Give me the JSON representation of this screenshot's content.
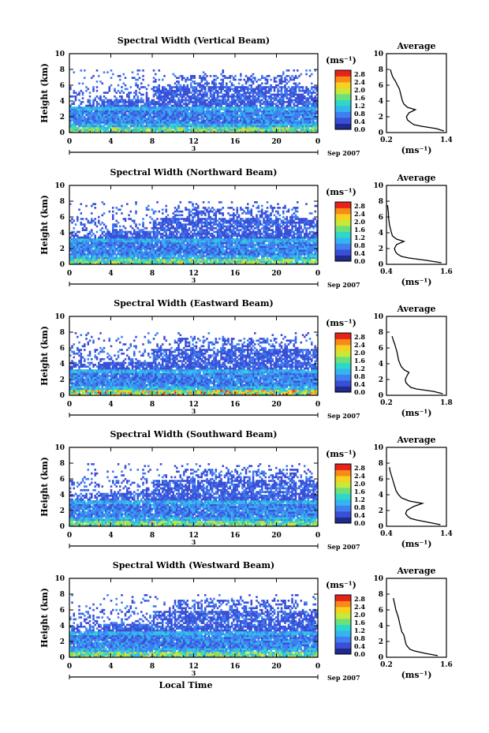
{
  "figure": {
    "date_label": "Sep 2007",
    "day_label": "3",
    "xlabel": "Local Time",
    "ylabel": "Height (km)",
    "colorbar_unit": "(ms⁻¹)",
    "colorbar_ticks": [
      "2.8",
      "2.4",
      "2.0",
      "1.6",
      "1.2",
      "0.8",
      "0.4",
      "0.0"
    ],
    "colors": [
      "#1e2a8c",
      "#3a4fd6",
      "#3f7ff0",
      "#35b4f0",
      "#2ed8c8",
      "#6ee07a",
      "#c8e83a",
      "#f8d020",
      "#f88a18",
      "#e8221a"
    ],
    "average_title": "Average",
    "average_unit": "(ms⁻¹)"
  },
  "chart_data": [
    {
      "type": "heatmap",
      "title": "Spectral Width (Vertical Beam)",
      "xlabel": "Local Time",
      "ylabel": "Height (km)",
      "xlim": [
        0,
        24
      ],
      "ylim": [
        0,
        10
      ],
      "x_ticks": [
        "0",
        "4",
        "8",
        "12",
        "16",
        "20",
        "0"
      ],
      "y_ticks": [
        "0",
        "2",
        "4",
        "6",
        "8",
        "10"
      ],
      "colorbar": {
        "label": "(ms⁻¹)",
        "ticks": [
          "2.8",
          "2.4",
          "2.0",
          "1.6",
          "1.2",
          "0.8",
          "0.4",
          "0.0"
        ],
        "range": [
          0,
          3.0
        ]
      },
      "average_profile": {
        "title": "Average",
        "xlabel": "(ms⁻¹)",
        "x_ticks": [
          "0.2",
          "1.4"
        ],
        "xlim": [
          0.2,
          1.4
        ],
        "y_ticks": [
          "0",
          "2",
          "4",
          "6",
          "8",
          "10"
        ],
        "height_km": [
          0.2,
          0.5,
          0.8,
          1.0,
          1.3,
          1.6,
          2.0,
          2.5,
          2.9,
          3.2,
          3.6,
          4.0,
          4.5,
          5.0,
          5.5,
          6.0,
          6.5,
          7.0,
          7.5,
          8.0
        ],
        "width_ms": [
          1.35,
          1.2,
          0.9,
          0.75,
          0.68,
          0.62,
          0.6,
          0.65,
          0.78,
          0.62,
          0.55,
          0.52,
          0.5,
          0.48,
          0.46,
          0.42,
          0.38,
          0.33,
          0.3,
          0.28
        ]
      }
    },
    {
      "type": "heatmap",
      "title": "Spectral Width (Northward Beam)",
      "xlabel": "Local Time",
      "ylabel": "Height (km)",
      "xlim": [
        0,
        24
      ],
      "ylim": [
        0,
        10
      ],
      "x_ticks": [
        "0",
        "4",
        "8",
        "12",
        "16",
        "20",
        "0"
      ],
      "y_ticks": [
        "0",
        "2",
        "4",
        "6",
        "8",
        "10"
      ],
      "colorbar": {
        "label": "(ms⁻¹)",
        "ticks": [
          "2.8",
          "2.4",
          "2.0",
          "1.6",
          "1.2",
          "0.8",
          "0.4",
          "0.0"
        ],
        "range": [
          0,
          3.0
        ]
      },
      "average_profile": {
        "title": "Average",
        "xlabel": "(ms⁻¹)",
        "x_ticks": [
          "0.4",
          "1.6"
        ],
        "xlim": [
          0.4,
          1.6
        ],
        "y_ticks": [
          "0",
          "2",
          "4",
          "6",
          "8",
          "10"
        ],
        "height_km": [
          0.2,
          0.5,
          0.8,
          1.0,
          1.3,
          1.6,
          2.0,
          2.5,
          2.9,
          3.2,
          3.6,
          4.0,
          4.5,
          5.0,
          5.5,
          6.0,
          6.5,
          7.0,
          7.5
        ],
        "width_ms": [
          1.5,
          1.2,
          0.85,
          0.7,
          0.62,
          0.58,
          0.56,
          0.6,
          0.75,
          0.6,
          0.52,
          0.5,
          0.48,
          0.46,
          0.45,
          0.44,
          0.44,
          0.43,
          0.42
        ]
      }
    },
    {
      "type": "heatmap",
      "title": "Spectral Width (Eastward Beam)",
      "xlabel": "Local Time",
      "ylabel": "Height (km)",
      "xlim": [
        0,
        24
      ],
      "ylim": [
        0,
        10
      ],
      "x_ticks": [
        "0",
        "4",
        "8",
        "12",
        "16",
        "20",
        "0"
      ],
      "y_ticks": [
        "0",
        "2",
        "4",
        "6",
        "8",
        "10"
      ],
      "colorbar": {
        "label": "(ms⁻¹)",
        "ticks": [
          "2.8",
          "2.4",
          "2.0",
          "1.6",
          "1.2",
          "0.8",
          "0.4",
          "0.0"
        ],
        "range": [
          0,
          3.0
        ]
      },
      "average_profile": {
        "title": "Average",
        "xlabel": "(ms⁻¹)",
        "x_ticks": [
          "0.2",
          "1.8"
        ],
        "xlim": [
          0.2,
          1.8
        ],
        "y_ticks": [
          "0",
          "2",
          "4",
          "6",
          "8",
          "10"
        ],
        "height_km": [
          0.2,
          0.5,
          0.8,
          1.0,
          1.3,
          1.6,
          2.0,
          2.5,
          2.9,
          3.2,
          3.6,
          4.0,
          4.5,
          5.0,
          5.5,
          6.0,
          6.5,
          7.0,
          7.5
        ],
        "width_ms": [
          1.7,
          1.45,
          1.0,
          0.85,
          0.78,
          0.72,
          0.7,
          0.75,
          0.8,
          0.68,
          0.6,
          0.56,
          0.52,
          0.5,
          0.48,
          0.45,
          0.42,
          0.38,
          0.35
        ]
      }
    },
    {
      "type": "heatmap",
      "title": "Spectral Width (Southward Beam)",
      "xlabel": "Local Time",
      "ylabel": "Height (km)",
      "xlim": [
        0,
        24
      ],
      "ylim": [
        0,
        10
      ],
      "x_ticks": [
        "0",
        "4",
        "8",
        "12",
        "16",
        "20",
        "0"
      ],
      "y_ticks": [
        "0",
        "2",
        "4",
        "6",
        "8",
        "10"
      ],
      "colorbar": {
        "label": "(ms⁻¹)",
        "ticks": [
          "2.8",
          "2.4",
          "2.0",
          "1.6",
          "1.2",
          "0.8",
          "0.4",
          "0.0"
        ],
        "range": [
          0,
          3.0
        ]
      },
      "average_profile": {
        "title": "Average",
        "xlabel": "(ms⁻¹)",
        "x_ticks": [
          "0.4",
          "1.4"
        ],
        "xlim": [
          0.4,
          1.4
        ],
        "y_ticks": [
          "0",
          "2",
          "4",
          "6",
          "8",
          "10"
        ],
        "height_km": [
          0.2,
          0.5,
          0.8,
          1.0,
          1.3,
          1.6,
          2.0,
          2.5,
          2.9,
          3.2,
          3.6,
          4.0,
          4.5,
          5.0,
          5.5,
          6.0,
          6.5,
          7.0,
          7.5
        ],
        "width_ms": [
          1.3,
          1.1,
          0.9,
          0.8,
          0.75,
          0.72,
          0.74,
          0.85,
          1.0,
          0.78,
          0.65,
          0.6,
          0.56,
          0.54,
          0.52,
          0.5,
          0.48,
          0.46,
          0.45
        ]
      }
    },
    {
      "type": "heatmap",
      "title": "Spectral Width (Westward Beam)",
      "xlabel": "Local Time",
      "ylabel": "Height (km)",
      "xlim": [
        0,
        24
      ],
      "ylim": [
        0,
        10
      ],
      "x_ticks": [
        "0",
        "4",
        "8",
        "12",
        "16",
        "20",
        "0"
      ],
      "y_ticks": [
        "0",
        "2",
        "4",
        "6",
        "8",
        "10"
      ],
      "colorbar": {
        "label": "(ms⁻¹)",
        "ticks": [
          "2.8",
          "2.4",
          "2.0",
          "1.6",
          "1.2",
          "0.8",
          "0.4",
          "0.0"
        ],
        "range": [
          0,
          3.0
        ]
      },
      "average_profile": {
        "title": "Average",
        "xlabel": "(ms⁻¹)",
        "x_ticks": [
          "0.2",
          "1.6"
        ],
        "xlim": [
          0.2,
          1.6
        ],
        "y_ticks": [
          "0",
          "2",
          "4",
          "6",
          "8",
          "10"
        ],
        "height_km": [
          0.2,
          0.5,
          0.8,
          1.0,
          1.3,
          1.6,
          2.0,
          2.5,
          2.9,
          3.2,
          3.6,
          4.0,
          4.5,
          5.0,
          5.5,
          6.0,
          6.5,
          7.0,
          7.5
        ],
        "width_ms": [
          1.4,
          1.1,
          0.85,
          0.75,
          0.7,
          0.66,
          0.64,
          0.62,
          0.6,
          0.56,
          0.54,
          0.52,
          0.5,
          0.48,
          0.45,
          0.42,
          0.4,
          0.38,
          0.36
        ]
      }
    }
  ]
}
